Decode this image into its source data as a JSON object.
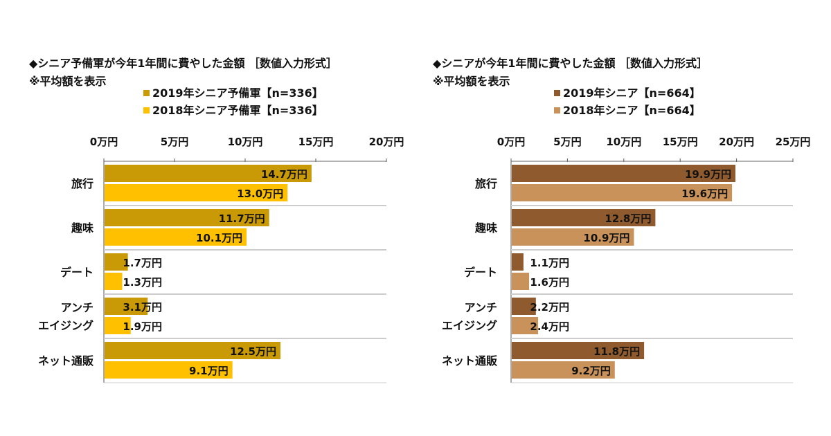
{
  "chart_data": [
    {
      "type": "bar",
      "orientation": "horizontal",
      "title": "◆シニア予備軍が今年1年間に費やした金額 ［数値入力形式］",
      "subtitle": "※平均額を表示",
      "categories": [
        "旅行",
        "趣味",
        "デート",
        "アンチ\nエイジング",
        "ネット通販"
      ],
      "series": [
        {
          "name": "2019年シニア予備軍【n=336】",
          "color": "#C99A06",
          "values": [
            14.7,
            11.7,
            1.7,
            3.1,
            12.5
          ],
          "labels": [
            "14.7万円",
            "11.7万円",
            "1.7万円",
            "3.1万円",
            "12.5万円"
          ]
        },
        {
          "name": "2018年シニア予備軍【n=336】",
          "color": "#FFC000",
          "values": [
            13.0,
            10.1,
            1.3,
            1.9,
            9.1
          ],
          "labels": [
            "13.0万円",
            "10.1万円",
            "1.3万円",
            "1.9万円",
            "9.1万円"
          ]
        }
      ],
      "xlim": [
        0,
        20
      ],
      "ticks": [
        "0万円",
        "5万円",
        "10万円",
        "15万円",
        "20万円"
      ],
      "legend": "top"
    },
    {
      "type": "bar",
      "orientation": "horizontal",
      "title": "◆シニアが今年1年間に費やした金額 ［数値入力形式］",
      "subtitle": "※平均額を表示",
      "categories": [
        "旅行",
        "趣味",
        "デート",
        "アンチ\nエイジング",
        "ネット通販"
      ],
      "series": [
        {
          "name": "2019年シニア【n=664】",
          "color": "#8F5B2E",
          "values": [
            19.9,
            12.8,
            1.1,
            2.2,
            11.8
          ],
          "labels": [
            "19.9万円",
            "12.8万円",
            "1.1万円",
            "2.2万円",
            "11.8万円"
          ]
        },
        {
          "name": "2018年シニア【n=664】",
          "color": "#C8925A",
          "values": [
            19.6,
            10.9,
            1.6,
            2.4,
            9.2
          ],
          "labels": [
            "19.6万円",
            "10.9万円",
            "1.6万円",
            "2.4万円",
            "9.2万円"
          ]
        }
      ],
      "xlim": [
        0,
        25
      ],
      "ticks": [
        "0万円",
        "5万円",
        "10万円",
        "15万円",
        "20万円",
        "25万円"
      ],
      "legend": "top"
    }
  ]
}
